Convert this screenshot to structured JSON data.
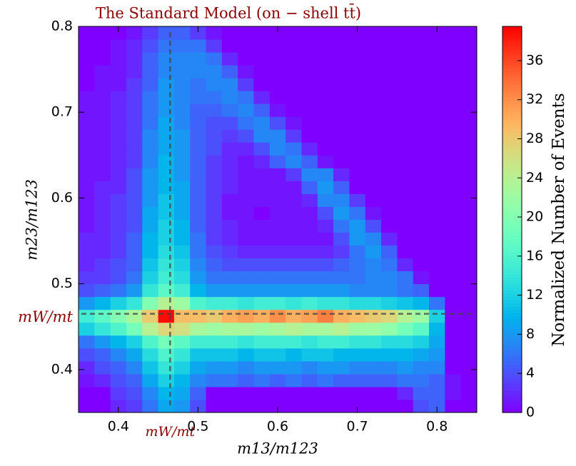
{
  "chart_data": {
    "type": "heatmap",
    "title": "The Standard Model (on − shell tt̄)",
    "xlabel": "m13/m123",
    "ylabel": "m23/m123",
    "zlabel": "Normalized Number of Events",
    "xlim": [
      0.35,
      0.85
    ],
    "ylim": [
      0.35,
      0.8
    ],
    "zlim": [
      0,
      39.5
    ],
    "xticks": [
      0.4,
      0.5,
      0.6,
      0.7,
      0.8
    ],
    "yticks": [
      0.4,
      0.5,
      0.6,
      0.7,
      0.8
    ],
    "zticks": [
      0,
      4,
      8,
      12,
      16,
      20,
      24,
      28,
      32,
      36
    ],
    "colormap": "rainbow",
    "xref": {
      "value": 0.465,
      "label": "mW/mt"
    },
    "yref": {
      "value": 0.465,
      "label": "mW/mt"
    },
    "xbins": [
      0.35,
      0.37,
      0.39,
      0.41,
      0.43,
      0.45,
      0.47,
      0.49,
      0.51,
      0.53,
      0.55,
      0.57,
      0.59,
      0.61,
      0.63,
      0.65,
      0.67,
      0.69,
      0.71,
      0.73,
      0.75,
      0.77,
      0.79,
      0.81,
      0.83,
      0.85
    ],
    "ybins": [
      0.35,
      0.365,
      0.38,
      0.395,
      0.41,
      0.425,
      0.44,
      0.455,
      0.47,
      0.485,
      0.5,
      0.515,
      0.53,
      0.545,
      0.56,
      0.575,
      0.59,
      0.605,
      0.62,
      0.635,
      0.65,
      0.665,
      0.68,
      0.695,
      0.71,
      0.725,
      0.74,
      0.755,
      0.77,
      0.785,
      0.8
    ],
    "z": [
      [
        0,
        0,
        2,
        3,
        6,
        9,
        8,
        4,
        0,
        0,
        0,
        0,
        0,
        0,
        0,
        0,
        0,
        0,
        0,
        0,
        0,
        4,
        5,
        0,
        0
      ],
      [
        0,
        0,
        3,
        4,
        7,
        10,
        9,
        5,
        0,
        0,
        0,
        0,
        0,
        0,
        0,
        0,
        0,
        0,
        0,
        0,
        2,
        5,
        5,
        1,
        0
      ],
      [
        1,
        2,
        4,
        5,
        9,
        12,
        10,
        7,
        6,
        6,
        5,
        6,
        5,
        6,
        5,
        6,
        5,
        5,
        5,
        5,
        6,
        6,
        5,
        1,
        0
      ],
      [
        2,
        4,
        5,
        7,
        11,
        14,
        12,
        9,
        8,
        8,
        7,
        8,
        8,
        8,
        7,
        8,
        8,
        7,
        7,
        7,
        8,
        7,
        7,
        0,
        0
      ],
      [
        4,
        5,
        7,
        9,
        13,
        16,
        14,
        11,
        11,
        11,
        10,
        11,
        11,
        10,
        11,
        11,
        10,
        10,
        10,
        10,
        10,
        9,
        8,
        0,
        0
      ],
      [
        6,
        8,
        10,
        12,
        16,
        19,
        17,
        15,
        15,
        15,
        14,
        15,
        15,
        15,
        14,
        15,
        15,
        14,
        14,
        13,
        13,
        12,
        9,
        0,
        0
      ],
      [
        12,
        14,
        16,
        19,
        24,
        27,
        26,
        23,
        22,
        23,
        23,
        22,
        23,
        24,
        23,
        23,
        24,
        22,
        22,
        21,
        19,
        17,
        10,
        0,
        0
      ],
      [
        15,
        17,
        20,
        23,
        28,
        39,
        29,
        29,
        28,
        30,
        31,
        30,
        32,
        30,
        31,
        33,
        30,
        29,
        28,
        27,
        24,
        22,
        12,
        0,
        0
      ],
      [
        8,
        10,
        12,
        14,
        20,
        24,
        22,
        16,
        15,
        15,
        14,
        15,
        15,
        14,
        15,
        14,
        14,
        13,
        13,
        12,
        11,
        10,
        6,
        0,
        0
      ],
      [
        4,
        5,
        6,
        8,
        14,
        17,
        15,
        10,
        8,
        8,
        8,
        8,
        8,
        8,
        8,
        8,
        8,
        7,
        7,
        7,
        6,
        5,
        0,
        0,
        0
      ],
      [
        3,
        3,
        4,
        6,
        12,
        15,
        13,
        8,
        6,
        6,
        6,
        6,
        6,
        6,
        6,
        6,
        6,
        6,
        7,
        7,
        6,
        1,
        0,
        0,
        0
      ],
      [
        2,
        3,
        4,
        5,
        11,
        14,
        12,
        7,
        5,
        4,
        4,
        4,
        4,
        4,
        4,
        4,
        5,
        6,
        7,
        6,
        2,
        0,
        0,
        0,
        0
      ],
      [
        2,
        2,
        3,
        5,
        10,
        13,
        11,
        6,
        4,
        3,
        2,
        2,
        2,
        2,
        2,
        2,
        3,
        6,
        8,
        5,
        0,
        0,
        0,
        0,
        0
      ],
      [
        2,
        2,
        3,
        5,
        10,
        12,
        10,
        6,
        3,
        2,
        1,
        1,
        1,
        1,
        1,
        1,
        4,
        8,
        7,
        2,
        0,
        0,
        0,
        0,
        0
      ],
      [
        1,
        2,
        3,
        4,
        9,
        12,
        10,
        5,
        3,
        2,
        1,
        1,
        1,
        1,
        1,
        2,
        6,
        8,
        4,
        0,
        0,
        0,
        0,
        0,
        0
      ],
      [
        1,
        2,
        3,
        4,
        9,
        11,
        9,
        5,
        3,
        1,
        1,
        0,
        1,
        1,
        1,
        4,
        8,
        6,
        1,
        0,
        0,
        0,
        0,
        0,
        0
      ],
      [
        1,
        2,
        3,
        4,
        8,
        11,
        9,
        5,
        3,
        1,
        1,
        1,
        1,
        1,
        2,
        7,
        7,
        3,
        0,
        0,
        0,
        0,
        0,
        0,
        0
      ],
      [
        1,
        2,
        2,
        4,
        8,
        10,
        9,
        5,
        3,
        2,
        1,
        1,
        1,
        1,
        5,
        8,
        5,
        0,
        0,
        0,
        0,
        0,
        0,
        0,
        0
      ],
      [
        1,
        1,
        2,
        4,
        8,
        10,
        8,
        5,
        3,
        2,
        1,
        1,
        1,
        3,
        7,
        7,
        2,
        0,
        0,
        0,
        0,
        0,
        0,
        0,
        0
      ],
      [
        1,
        1,
        2,
        3,
        7,
        10,
        8,
        5,
        3,
        2,
        1,
        2,
        5,
        7,
        5,
        1,
        0,
        0,
        0,
        0,
        0,
        0,
        0,
        0,
        0
      ],
      [
        1,
        1,
        2,
        3,
        7,
        9,
        8,
        5,
        4,
        2,
        2,
        4,
        7,
        6,
        2,
        0,
        0,
        0,
        0,
        0,
        0,
        0,
        0,
        0,
        0
      ],
      [
        1,
        1,
        2,
        3,
        7,
        9,
        8,
        5,
        4,
        3,
        4,
        7,
        7,
        3,
        0,
        0,
        0,
        0,
        0,
        0,
        0,
        0,
        0,
        0,
        0
      ],
      [
        1,
        1,
        2,
        3,
        6,
        9,
        7,
        5,
        4,
        4,
        6,
        7,
        4,
        1,
        0,
        0,
        0,
        0,
        0,
        0,
        0,
        0,
        0,
        0,
        0
      ],
      [
        1,
        1,
        2,
        3,
        6,
        8,
        7,
        5,
        5,
        6,
        7,
        5,
        1,
        0,
        0,
        0,
        0,
        0,
        0,
        0,
        0,
        0,
        0,
        0,
        0
      ],
      [
        1,
        1,
        2,
        3,
        6,
        8,
        7,
        6,
        6,
        7,
        6,
        2,
        0,
        0,
        0,
        0,
        0,
        0,
        0,
        0,
        0,
        0,
        0,
        0,
        0
      ],
      [
        0,
        1,
        1,
        3,
        5,
        8,
        7,
        6,
        7,
        7,
        3,
        0,
        0,
        0,
        0,
        0,
        0,
        0,
        0,
        0,
        0,
        0,
        0,
        0,
        0
      ],
      [
        0,
        1,
        1,
        2,
        5,
        7,
        7,
        7,
        7,
        5,
        1,
        0,
        0,
        0,
        0,
        0,
        0,
        0,
        0,
        0,
        0,
        0,
        0,
        0,
        0
      ],
      [
        0,
        0,
        1,
        2,
        5,
        7,
        7,
        7,
        6,
        2,
        0,
        0,
        0,
        0,
        0,
        0,
        0,
        0,
        0,
        0,
        0,
        0,
        0,
        0,
        0
      ],
      [
        0,
        0,
        1,
        2,
        4,
        6,
        6,
        6,
        3,
        0,
        0,
        0,
        0,
        0,
        0,
        0,
        0,
        0,
        0,
        0,
        0,
        0,
        0,
        0,
        0
      ],
      [
        0,
        0,
        0,
        1,
        3,
        5,
        5,
        3,
        1,
        0,
        0,
        0,
        0,
        0,
        0,
        0,
        0,
        0,
        0,
        0,
        0,
        0,
        0,
        0,
        0
      ]
    ]
  }
}
